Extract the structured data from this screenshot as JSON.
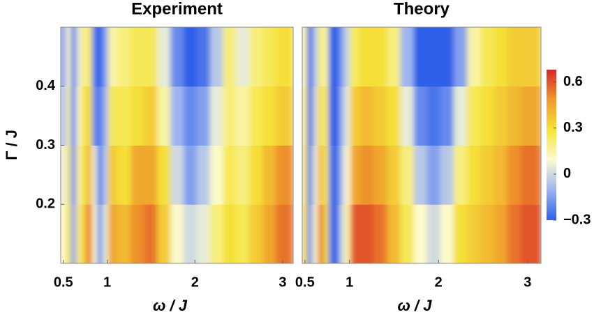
{
  "chart_data": [
    {
      "type": "heatmap",
      "title": "Experiment",
      "xlabel": "ω / J",
      "ylabel": "Γ / J",
      "x": [
        0.5,
        0.56,
        0.62,
        0.68,
        0.74,
        0.8,
        0.86,
        0.92,
        0.98,
        1.05,
        1.2,
        1.35,
        1.5,
        1.65,
        1.8,
        1.95,
        2.1,
        2.25,
        2.4,
        2.55,
        2.7,
        2.85,
        3.0
      ],
      "y": [
        0.15,
        0.25,
        0.35,
        0.45
      ],
      "z": [
        [
          0.1,
          0.25,
          -0.15,
          0.2,
          0.35,
          0.55,
          0.1,
          -0.2,
          0.05,
          0.45,
          0.4,
          0.5,
          0.55,
          0.35,
          0.1,
          0.0,
          0.05,
          0.2,
          0.3,
          0.25,
          0.35,
          0.45,
          0.55
        ],
        [
          0.05,
          0.2,
          -0.2,
          0.15,
          0.3,
          0.4,
          0.05,
          -0.25,
          -0.05,
          0.35,
          0.3,
          0.45,
          0.45,
          0.3,
          0.0,
          -0.15,
          -0.05,
          0.1,
          0.25,
          0.2,
          0.3,
          0.4,
          0.5
        ],
        [
          -0.1,
          0.15,
          -0.25,
          0.1,
          0.3,
          0.3,
          -0.2,
          -0.25,
          -0.1,
          0.25,
          0.25,
          0.3,
          0.35,
          0.15,
          -0.1,
          -0.2,
          -0.15,
          0.05,
          0.2,
          0.15,
          0.25,
          0.3,
          0.35
        ],
        [
          -0.2,
          0.1,
          -0.25,
          0.05,
          0.2,
          0.2,
          -0.25,
          -0.3,
          -0.15,
          0.15,
          0.2,
          0.25,
          0.25,
          0.05,
          -0.2,
          -0.3,
          -0.25,
          -0.05,
          0.2,
          0.05,
          0.2,
          0.25,
          0.3
        ]
      ],
      "xlim": [
        0.47,
        3.12
      ],
      "ylim": [
        0.1,
        0.5
      ],
      "xticks": [
        0.5,
        1,
        2,
        3
      ],
      "yticks": [
        0.2,
        0.3,
        0.4
      ],
      "zlim": [
        -0.3,
        0.68
      ],
      "colormap": [
        "#2d5fe8",
        "#9db4f0",
        "#fbfbd0",
        "#f5e33a",
        "#ef9a2c",
        "#d7262a"
      ]
    },
    {
      "type": "heatmap",
      "title": "Theory",
      "xlabel": "ω / J",
      "x": [
        0.5,
        0.56,
        0.62,
        0.68,
        0.74,
        0.8,
        0.86,
        0.92,
        0.98,
        1.05,
        1.2,
        1.35,
        1.5,
        1.65,
        1.8,
        1.95,
        2.1,
        2.25,
        2.4,
        2.55,
        2.7,
        2.85,
        3.0
      ],
      "y": [
        0.15,
        0.25,
        0.35,
        0.45
      ],
      "z": [
        [
          0.3,
          -0.2,
          0.1,
          0.55,
          0.3,
          -0.25,
          -0.3,
          0.0,
          0.15,
          0.6,
          0.6,
          0.55,
          0.4,
          0.25,
          0.1,
          0.0,
          0.1,
          0.3,
          0.35,
          0.4,
          0.45,
          0.55,
          0.6
        ],
        [
          0.25,
          -0.25,
          0.05,
          0.4,
          0.25,
          -0.25,
          -0.3,
          -0.05,
          0.1,
          0.45,
          0.5,
          0.45,
          0.35,
          0.2,
          -0.05,
          -0.15,
          -0.05,
          0.2,
          0.3,
          0.35,
          0.4,
          0.5,
          0.55
        ],
        [
          0.2,
          -0.3,
          0.0,
          0.3,
          0.2,
          -0.3,
          -0.3,
          -0.1,
          0.05,
          0.35,
          0.4,
          0.35,
          0.3,
          0.05,
          -0.2,
          -0.25,
          -0.2,
          0.05,
          0.25,
          0.3,
          0.35,
          0.4,
          0.45
        ],
        [
          0.15,
          -0.3,
          -0.05,
          0.2,
          0.15,
          -0.3,
          -0.3,
          -0.15,
          0.0,
          0.25,
          0.3,
          0.3,
          0.2,
          -0.1,
          -0.3,
          -0.3,
          -0.3,
          -0.15,
          0.15,
          0.25,
          0.3,
          0.35,
          0.35
        ]
      ],
      "xlim": [
        0.47,
        3.15
      ],
      "ylim": [
        0.1,
        0.5
      ],
      "xticks": [
        0.5,
        1,
        2,
        3
      ],
      "zlim": [
        -0.3,
        0.68
      ],
      "colormap": [
        "#2d5fe8",
        "#9db4f0",
        "#fbfbd0",
        "#f5e33a",
        "#ef9a2c",
        "#d7262a"
      ],
      "colorbar_ticks": [
        {
          "value": -0.3,
          "label": "−0.3"
        },
        0,
        0.3,
        0.6
      ]
    }
  ]
}
